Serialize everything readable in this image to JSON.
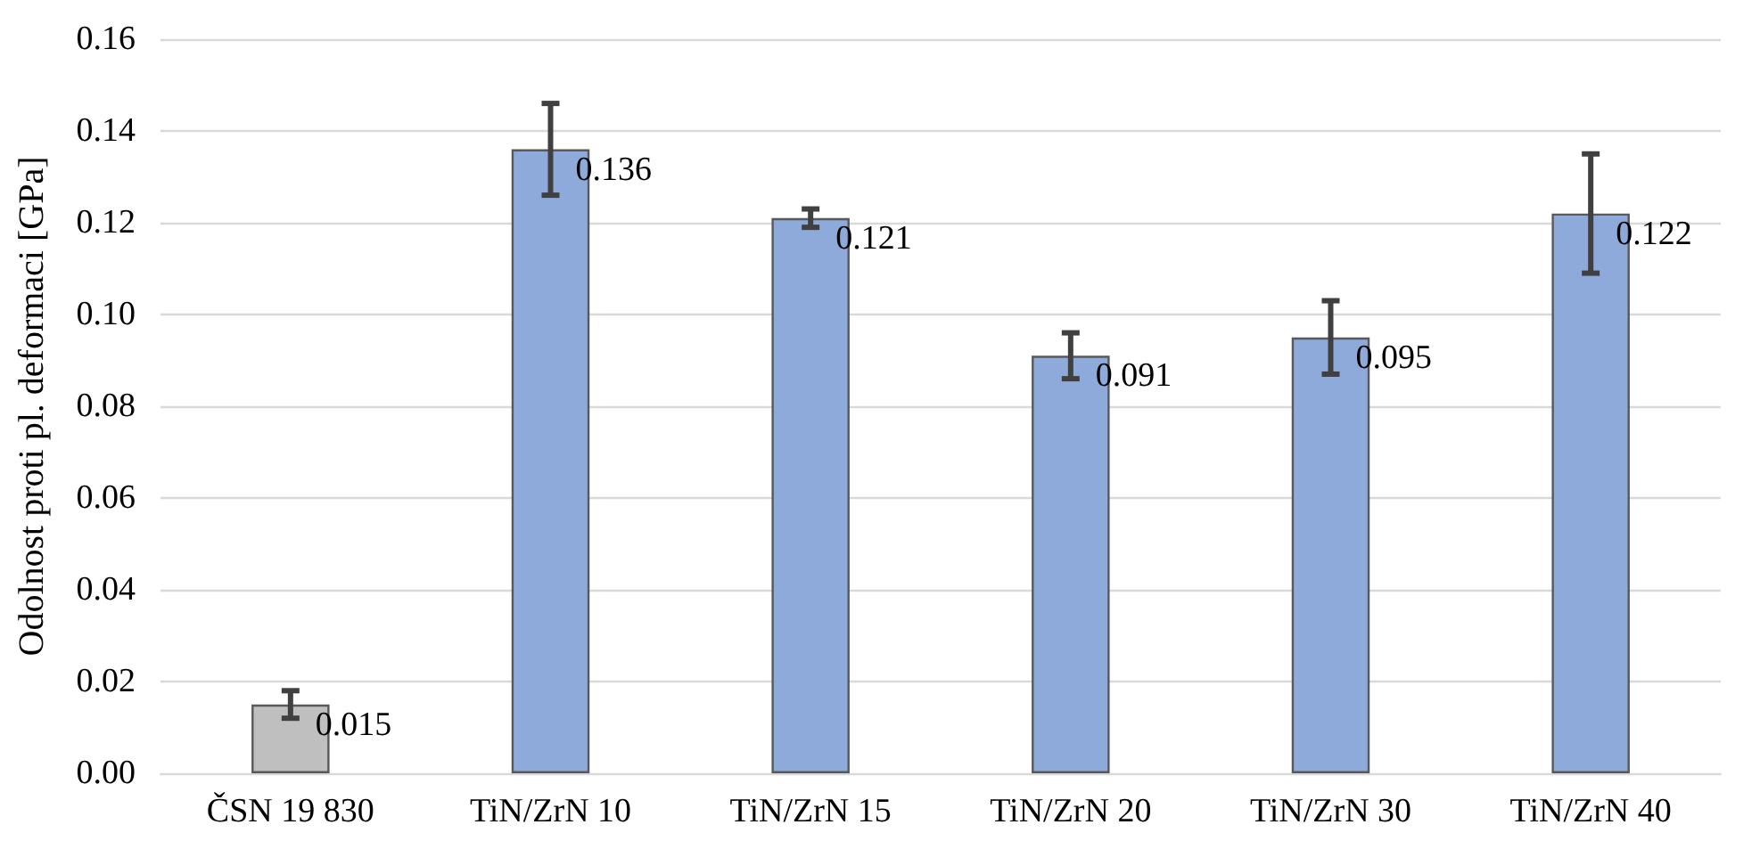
{
  "chart_data": {
    "type": "bar",
    "ylabel": "Odolnost proti pl. deformaci [GPa]",
    "categories": [
      "ČSN 19 830",
      "TiN/ZrN 10",
      "TiN/ZrN 15",
      "TiN/ZrN 20",
      "TiN/ZrN 30",
      "TiN/ZrN 40"
    ],
    "values": [
      0.015,
      0.136,
      0.121,
      0.091,
      0.095,
      0.122
    ],
    "errors": [
      0.003,
      0.01,
      0.002,
      0.005,
      0.008,
      0.013
    ],
    "colors": [
      "#bfbfbf",
      "#8eaadb",
      "#8eaadb",
      "#8eaadb",
      "#8eaadb",
      "#8eaadb"
    ],
    "data_labels": true,
    "ylim": [
      0,
      0.16
    ],
    "yticks": [
      {
        "value": 0,
        "label": "0.00"
      },
      {
        "value": 0.02,
        "label": "0.02"
      },
      {
        "value": 0.04,
        "label": "0.04"
      },
      {
        "value": 0.06,
        "label": "0.06"
      },
      {
        "value": 0.08,
        "label": "0.08"
      },
      {
        "value": 0.1,
        "label": "0.10"
      },
      {
        "value": 0.12,
        "label": "0.12"
      },
      {
        "value": 0.14,
        "label": "0.14"
      },
      {
        "value": 0.16,
        "label": "0.16"
      }
    ],
    "grid": "y"
  }
}
